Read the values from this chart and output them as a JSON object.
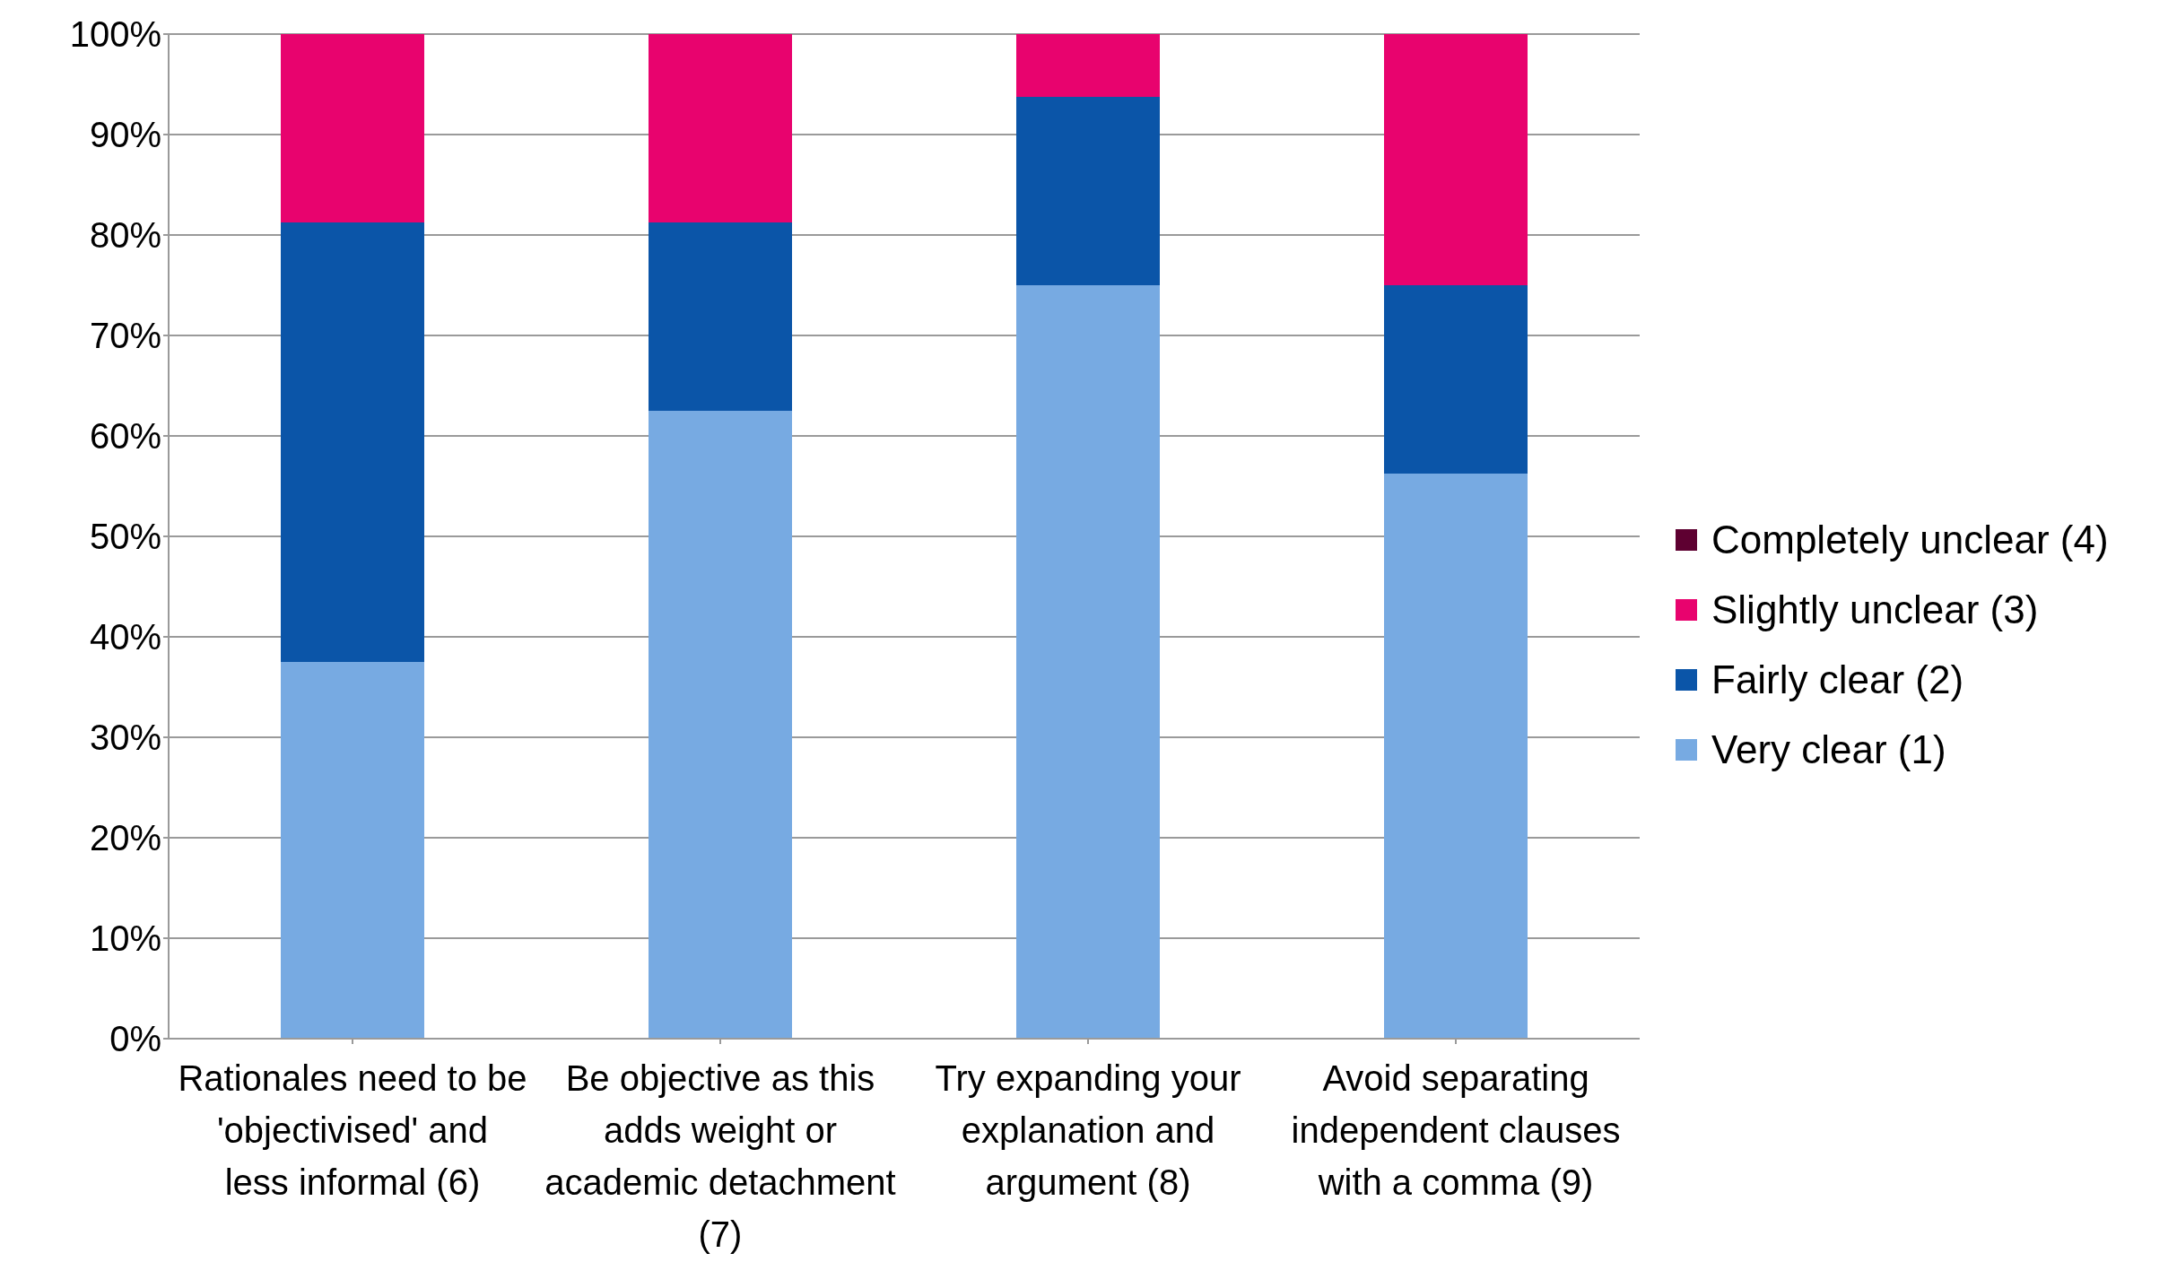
{
  "chart_data": {
    "type": "bar",
    "stacked": true,
    "categories": [
      "Rationales need to be 'objectivised' and less informal (6)",
      "Be objective as this adds weight or academic detachment (7)",
      "Try expanding your explanation and argument (8)",
      "Avoid separating independent clauses with a comma (9)"
    ],
    "series": [
      {
        "name": "Very clear (1)",
        "color": "#77aae2",
        "values": [
          37.5,
          62.5,
          75,
          56.25
        ]
      },
      {
        "name": "Fairly clear (2)",
        "color": "#0b55a8",
        "values": [
          43.75,
          18.75,
          18.75,
          18.75
        ]
      },
      {
        "name": "Slightly unclear (3)",
        "color": "#e8036e",
        "values": [
          18.75,
          18.75,
          6.25,
          25
        ]
      },
      {
        "name": "Completely unclear (4)",
        "color": "#5e0031",
        "values": [
          0,
          0,
          0,
          0
        ]
      }
    ],
    "ylim": [
      0,
      100
    ],
    "yticks": [
      {
        "value": 0,
        "label": "0%"
      },
      {
        "value": 10,
        "label": "10%"
      },
      {
        "value": 20,
        "label": "20%"
      },
      {
        "value": 30,
        "label": "30%"
      },
      {
        "value": 40,
        "label": "40%"
      },
      {
        "value": 50,
        "label": "50%"
      },
      {
        "value": 60,
        "label": "60%"
      },
      {
        "value": 70,
        "label": "70%"
      },
      {
        "value": 80,
        "label": "80%"
      },
      {
        "value": 90,
        "label": "90%"
      },
      {
        "value": 100,
        "label": "100%"
      }
    ],
    "grid": "y",
    "legend": "right"
  }
}
